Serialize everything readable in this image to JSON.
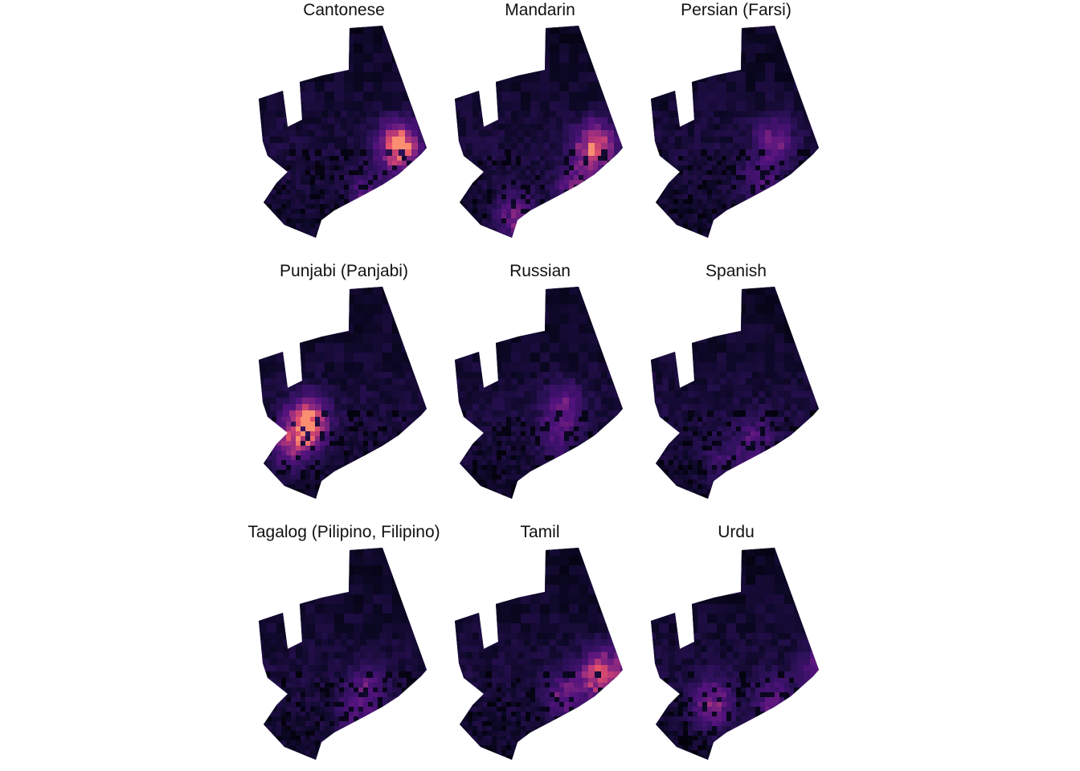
{
  "figure": {
    "panels": [
      {
        "title": "Cantonese",
        "hotspots": [
          [
            0.8,
            0.55,
            0.95
          ],
          [
            0.62,
            0.8,
            0.35
          ]
        ]
      },
      {
        "title": "Mandarin",
        "hotspots": [
          [
            0.8,
            0.55,
            0.8
          ],
          [
            0.35,
            0.88,
            0.45
          ],
          [
            0.7,
            0.75,
            0.45
          ]
        ]
      },
      {
        "title": "Persian (Farsi)",
        "hotspots": [
          [
            0.7,
            0.52,
            0.4
          ],
          [
            0.62,
            0.72,
            0.25
          ]
        ]
      },
      {
        "title": "Punjabi (Panjabi)",
        "hotspots": [
          [
            0.28,
            0.62,
            0.95
          ],
          [
            0.18,
            0.72,
            0.45
          ]
        ]
      },
      {
        "title": "Russian",
        "hotspots": [
          [
            0.62,
            0.55,
            0.35
          ],
          [
            0.58,
            0.7,
            0.2
          ]
        ]
      },
      {
        "title": "Spanish",
        "hotspots": [
          [
            0.6,
            0.72,
            0.3
          ],
          [
            0.4,
            0.8,
            0.2
          ]
        ]
      },
      {
        "title": "Tagalog (Pilipino, Filipino)",
        "hotspots": [
          [
            0.62,
            0.65,
            0.3
          ],
          [
            0.55,
            0.78,
            0.25
          ]
        ]
      },
      {
        "title": "Tamil",
        "hotspots": [
          [
            0.82,
            0.58,
            0.7
          ],
          [
            0.62,
            0.68,
            0.35
          ],
          [
            0.98,
            0.55,
            0.35
          ]
        ]
      },
      {
        "title": "Urdu",
        "hotspots": [
          [
            0.35,
            0.72,
            0.45
          ],
          [
            0.7,
            0.72,
            0.35
          ],
          [
            0.95,
            0.55,
            0.3
          ]
        ]
      }
    ]
  },
  "colors": {
    "background": "#ffffff",
    "low": "#000004",
    "mid": "#51127c",
    "high": "#e6546a"
  }
}
